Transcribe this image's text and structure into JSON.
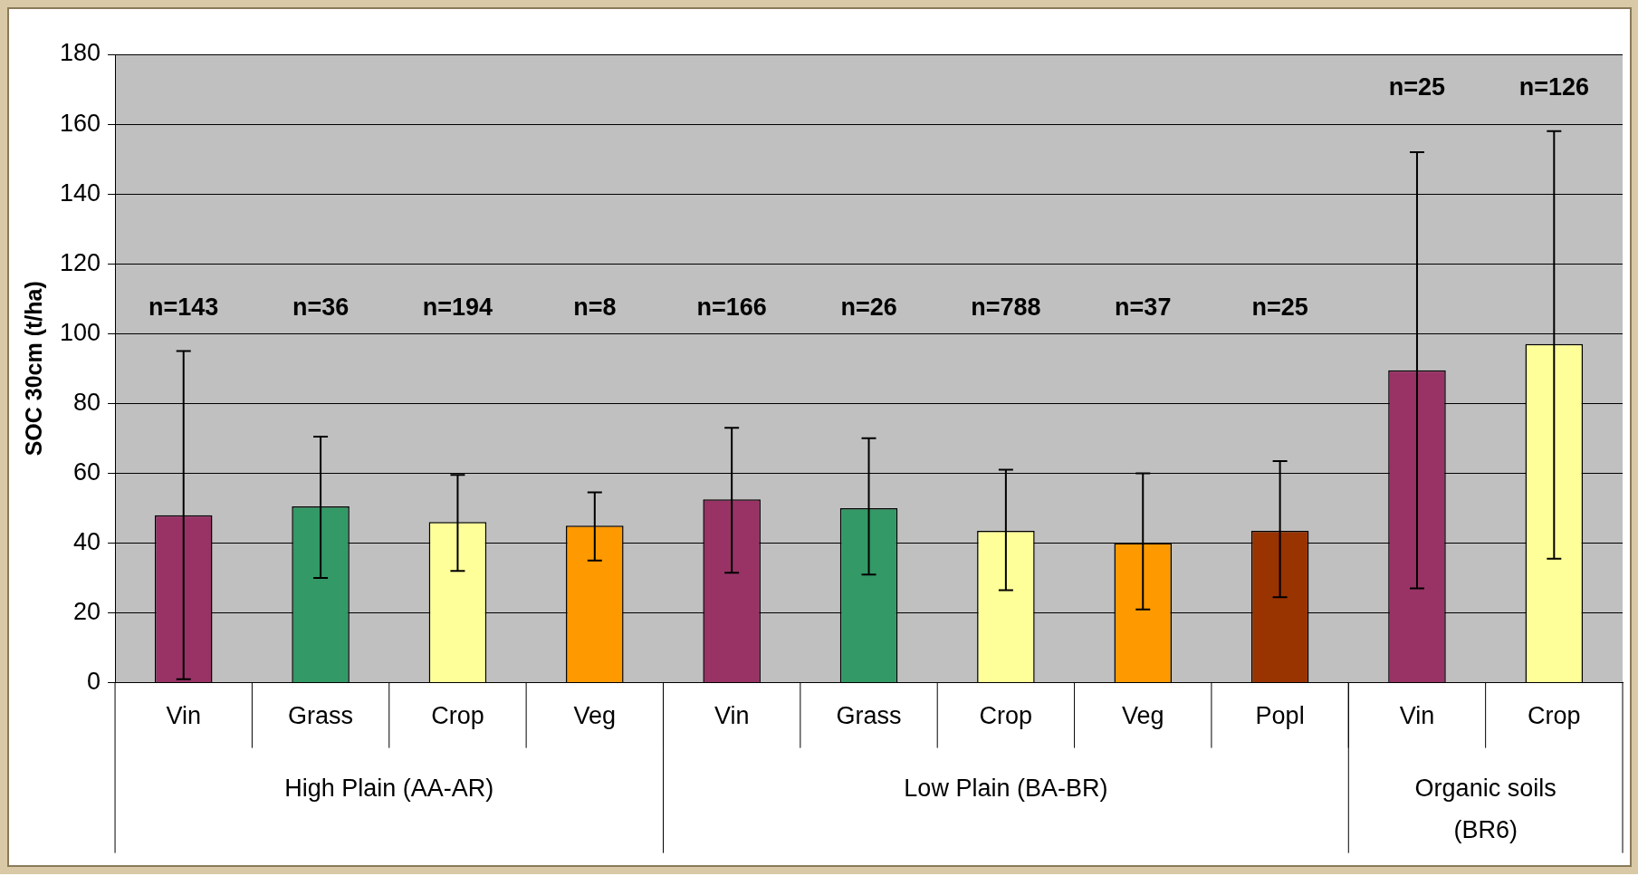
{
  "chart_data": {
    "type": "bar",
    "ylabel": "SOC 30cm (t/ha)",
    "categories": [
      "Vin",
      "Grass",
      "Crop",
      "Veg",
      "Vin",
      "Grass",
      "Crop",
      "Veg",
      "Popl",
      "Vin",
      "Crop"
    ],
    "values": [
      48,
      50.5,
      46,
      45,
      52.5,
      50,
      43.5,
      40,
      43.5,
      89.5,
      97
    ],
    "colors": [
      "#993366",
      "#339966",
      "#ffff99",
      "#ff9900",
      "#993366",
      "#339966",
      "#ffff99",
      "#ff9900",
      "#993300",
      "#993366",
      "#ffff99"
    ],
    "errors": [
      [
        1,
        95
      ],
      [
        30,
        70.5
      ],
      [
        32,
        59.5
      ],
      [
        35,
        54.5
      ],
      [
        31.5,
        73
      ],
      [
        31,
        70
      ],
      [
        26.5,
        61
      ],
      [
        21,
        60
      ],
      [
        24.5,
        63.5
      ],
      [
        27,
        152
      ],
      [
        35.5,
        158
      ]
    ],
    "annotations": [
      "n=143",
      "n=36",
      "n=194",
      "n=8",
      "n=166",
      "n=26",
      "n=788",
      "n=37",
      "n=25",
      "n=25",
      "n=126",
      "High Plain (AA-AR)",
      "Low Plain (BA-BR)",
      "Organic soils\n(BR6)"
    ],
    "ylim": [
      0,
      180
    ],
    "yticks": [
      0,
      20,
      40,
      60,
      80,
      100,
      120,
      140,
      160,
      180
    ],
    "grid": "y",
    "legend": false
  }
}
